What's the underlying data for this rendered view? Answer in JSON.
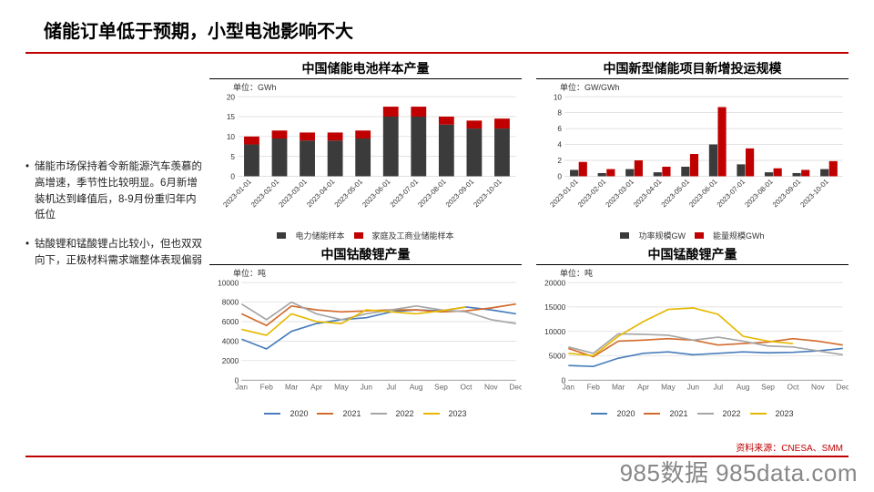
{
  "title": "储能订单低于预期，小型电池影响不大",
  "bullets": [
    "储能市场保持着令新能源汽车羡慕的高增速，季节性比较明显。6月新增装机达到峰值后，8-9月份重归年内低位",
    "钴酸锂和锰酸锂占比较小，但也双双向下，正极材料需求端整体表现偏弱"
  ],
  "source_label": "资料来源：CNESA、SMM",
  "watermark": "985数据 985data.com",
  "chart1": {
    "title": "中国储能电池样本产量",
    "unit": "单位：GWh",
    "ymax": 20,
    "ystep": 5,
    "x": [
      "2023-01-01",
      "2023-02-01",
      "2023-03-01",
      "2023-04-01",
      "2023-05-01",
      "2023-06-01",
      "2023-07-01",
      "2023-08-01",
      "2023-09-01",
      "2023-10-01"
    ],
    "series": [
      {
        "name": "电力储能样本",
        "color": "#3b3b3b",
        "vals": [
          8,
          9.5,
          9,
          9,
          9.5,
          15,
          15,
          13,
          12,
          12
        ]
      },
      {
        "name": "家庭及工商业储能样本",
        "color": "#c00000",
        "vals": [
          2,
          2,
          2,
          2,
          2,
          2.5,
          2.5,
          2,
          2,
          2.5
        ]
      }
    ]
  },
  "chart2": {
    "title": "中国新型储能项目新增投运规模",
    "unit": "单位：GW/GWh",
    "ymax": 10,
    "ystep": 2,
    "x": [
      "2023-01-01",
      "2023-02-01",
      "2023-03-01",
      "2023-04-01",
      "2023-05-01",
      "2023-06-01",
      "2023-07-01",
      "2023-08-01",
      "2023-09-01",
      "2023-10-01"
    ],
    "series": [
      {
        "name": "功率规模GW",
        "color": "#3b3b3b",
        "vals": [
          0.8,
          0.4,
          0.9,
          0.5,
          1.2,
          4,
          1.5,
          0.5,
          0.4,
          0.9
        ]
      },
      {
        "name": "能量规模GWh",
        "color": "#c00000",
        "vals": [
          1.8,
          0.9,
          2.0,
          1.2,
          2.8,
          8.7,
          3.5,
          1.0,
          0.8,
          1.9
        ]
      }
    ]
  },
  "chart3": {
    "title": "中国钴酸锂产量",
    "unit": "单位：吨",
    "ymax": 10000,
    "ystep": 2000,
    "x": [
      "Jan",
      "Feb",
      "Mar",
      "Apr",
      "May",
      "Jun",
      "Jul",
      "Aug",
      "Sep",
      "Oct",
      "Nov",
      "Dec"
    ],
    "series": [
      {
        "name": "2020",
        "color": "#4a7ebb",
        "vals": [
          4200,
          3200,
          5000,
          5800,
          6200,
          6400,
          7000,
          7200,
          7100,
          7500,
          7200,
          6800
        ]
      },
      {
        "name": "2021",
        "color": "#d26b2c",
        "vals": [
          6800,
          5600,
          7600,
          7200,
          7000,
          7100,
          7200,
          7200,
          7000,
          7100,
          7400,
          7800
        ]
      },
      {
        "name": "2022",
        "color": "#a6a6a6",
        "vals": [
          7800,
          6200,
          8000,
          6800,
          6200,
          6800,
          7200,
          7600,
          7200,
          7000,
          6200,
          5800
        ]
      },
      {
        "name": "2023",
        "color": "#e6b800",
        "vals": [
          5200,
          4600,
          6800,
          6000,
          5800,
          7200,
          7000,
          6800,
          7100,
          7500,
          0,
          0
        ]
      }
    ],
    "series3_len": 10
  },
  "chart4": {
    "title": "中国锰酸锂产量",
    "unit": "单位：吨",
    "ymax": 20000,
    "ystep": 5000,
    "x": [
      "Jan",
      "Feb",
      "Mar",
      "Apr",
      "May",
      "Jun",
      "Jul",
      "Aug",
      "Sep",
      "Oct",
      "Nov",
      "Dec"
    ],
    "series": [
      {
        "name": "2020",
        "color": "#4a7ebb",
        "vals": [
          3000,
          2800,
          4500,
          5500,
          5800,
          5200,
          5500,
          5800,
          5600,
          5700,
          6000,
          6500
        ]
      },
      {
        "name": "2021",
        "color": "#d26b2c",
        "vals": [
          6500,
          4800,
          8000,
          8200,
          8500,
          8200,
          7200,
          7500,
          7800,
          8500,
          8000,
          7200
        ]
      },
      {
        "name": "2022",
        "color": "#a6a6a6",
        "vals": [
          6800,
          5500,
          9500,
          9400,
          9200,
          8200,
          8800,
          8000,
          7000,
          6800,
          6000,
          5200
        ]
      },
      {
        "name": "2023",
        "color": "#e6b800",
        "vals": [
          5500,
          5000,
          9000,
          12000,
          14500,
          14800,
          13500,
          9000,
          8000,
          7500,
          0,
          0
        ]
      }
    ],
    "series3_len": 10
  },
  "line_legend": [
    {
      "name": "2020",
      "color": "#4a7ebb"
    },
    {
      "name": "2021",
      "color": "#d26b2c"
    },
    {
      "name": "2022",
      "color": "#a6a6a6"
    },
    {
      "name": "2023",
      "color": "#e6b800"
    }
  ]
}
